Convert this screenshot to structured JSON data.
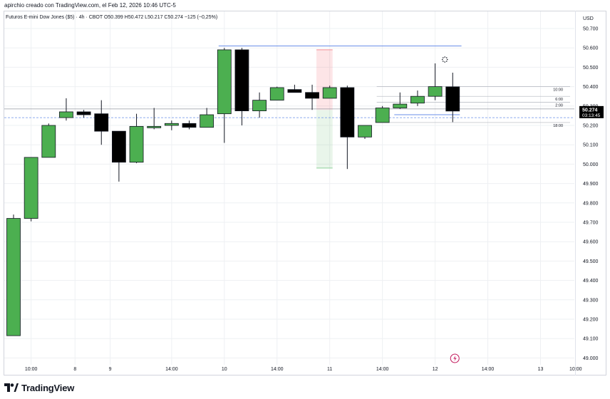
{
  "caption": "apirchio creado con TradingView.com, el Feb 12, 2026 10:46 UTC-5",
  "brand": {
    "logo_text": "TradingView"
  },
  "colors": {
    "up": "#4caf50",
    "down": "#000000",
    "level_blue": "#6a8fe8",
    "grid": "#eef0f3"
  },
  "chart_data": {
    "type": "candlestick",
    "title": "Futuros E-mini Dow Jones ($5) · 4h · CBOT   O50.399  H50.472  L50.217  C50.274  −125 (−0,25%)",
    "currency": "USD",
    "ylim": [
      48950,
      50750
    ],
    "y_ticks": [
      49000,
      49100,
      49200,
      49300,
      49400,
      49500,
      49600,
      49700,
      49800,
      49900,
      50000,
      50100,
      50200,
      50300,
      50400,
      50500,
      50600,
      50700
    ],
    "y_tick_labels": [
      "49.000",
      "49.100",
      "49.200",
      "49.300",
      "49.400",
      "49.500",
      "49.600",
      "49.700",
      "49.800",
      "49.900",
      "50.000",
      "50.100",
      "50.200",
      "50.300",
      "50.400",
      "50.500",
      "50.600",
      "50.700"
    ],
    "x_tick_labels": [
      {
        "index": 1,
        "label": "10:00"
      },
      {
        "index": 3.5,
        "label": "8"
      },
      {
        "index": 5.5,
        "label": "9"
      },
      {
        "index": 9,
        "label": "14:00"
      },
      {
        "index": 12,
        "label": "10"
      },
      {
        "index": 15,
        "label": "14:00"
      },
      {
        "index": 18,
        "label": "11"
      },
      {
        "index": 21,
        "label": "14:00"
      },
      {
        "index": 24,
        "label": "12"
      },
      {
        "index": 27,
        "label": "14:00"
      },
      {
        "index": 30,
        "label": "13"
      },
      {
        "index": 32,
        "label": "10:00"
      }
    ],
    "candles": [
      {
        "o": 49720,
        "h": 49740,
        "l": 49115,
        "c": 49115,
        "color": "up"
      },
      {
        "o": 49720,
        "h": 50035,
        "l": 49705,
        "c": 50035,
        "color": "up"
      },
      {
        "o": 50035,
        "h": 50210,
        "l": 50035,
        "c": 50200,
        "color": "up"
      },
      {
        "o": 50240,
        "h": 50340,
        "l": 50225,
        "c": 50270,
        "color": "up"
      },
      {
        "o": 50270,
        "h": 50280,
        "l": 50240,
        "c": 50255,
        "color": "down"
      },
      {
        "o": 50260,
        "h": 50330,
        "l": 50100,
        "c": 50170,
        "color": "down"
      },
      {
        "o": 50170,
        "h": 50170,
        "l": 49910,
        "c": 50010,
        "color": "down"
      },
      {
        "o": 50010,
        "h": 50260,
        "l": 50005,
        "c": 50195,
        "color": "up"
      },
      {
        "o": 50190,
        "h": 50290,
        "l": 50180,
        "c": 50195,
        "color": "up"
      },
      {
        "o": 50200,
        "h": 50225,
        "l": 50175,
        "c": 50210,
        "color": "up"
      },
      {
        "o": 50210,
        "h": 50225,
        "l": 50180,
        "c": 50190,
        "color": "down"
      },
      {
        "o": 50190,
        "h": 50290,
        "l": 50190,
        "c": 50255,
        "color": "up"
      },
      {
        "o": 50260,
        "h": 50600,
        "l": 50110,
        "c": 50590,
        "color": "up"
      },
      {
        "o": 50590,
        "h": 50600,
        "l": 50200,
        "c": 50275,
        "color": "down"
      },
      {
        "o": 50275,
        "h": 50370,
        "l": 50240,
        "c": 50330,
        "color": "up"
      },
      {
        "o": 50330,
        "h": 50400,
        "l": 50330,
        "c": 50395,
        "color": "up"
      },
      {
        "o": 50385,
        "h": 50410,
        "l": 50370,
        "c": 50370,
        "color": "down"
      },
      {
        "o": 50370,
        "h": 50410,
        "l": 50280,
        "c": 50340,
        "color": "down"
      },
      {
        "o": 50340,
        "h": 50405,
        "l": 50340,
        "c": 50395,
        "color": "up"
      },
      {
        "o": 50395,
        "h": 50405,
        "l": 49975,
        "c": 50140,
        "color": "down"
      },
      {
        "o": 50140,
        "h": 50195,
        "l": 50130,
        "c": 50200,
        "color": "up"
      },
      {
        "o": 50215,
        "h": 50300,
        "l": 50215,
        "c": 50290,
        "color": "up"
      },
      {
        "o": 50290,
        "h": 50370,
        "l": 50285,
        "c": 50310,
        "color": "up"
      },
      {
        "o": 50315,
        "h": 50380,
        "l": 50300,
        "c": 50350,
        "color": "up"
      },
      {
        "o": 50350,
        "h": 50520,
        "l": 50330,
        "c": 50400,
        "color": "up"
      },
      {
        "o": 50399,
        "h": 50472,
        "l": 50217,
        "c": 50274,
        "color": "down"
      }
    ],
    "current_price": {
      "value": 50274,
      "label": "50.274",
      "countdown": "03:13:45"
    },
    "levels": [
      {
        "value": 50285,
        "type": "solid-gray",
        "label": ""
      },
      {
        "value": 50240,
        "type": "dashed-blue",
        "label": ""
      },
      {
        "value": 50610,
        "type": "solid-blue",
        "label": ""
      },
      {
        "value": 50400,
        "label": "10:00"
      },
      {
        "value": 50350,
        "label": "6:00"
      },
      {
        "value": 50320,
        "label": "2:00"
      },
      {
        "value": 50215,
        "label": "18:00"
      }
    ],
    "zones": [
      {
        "from_index": 17,
        "to_index": 18,
        "top": 50590,
        "bottom": 50280,
        "color": "red"
      },
      {
        "from_index": 17,
        "to_index": 18,
        "top": 50280,
        "bottom": 49980,
        "color": "green"
      }
    ]
  }
}
